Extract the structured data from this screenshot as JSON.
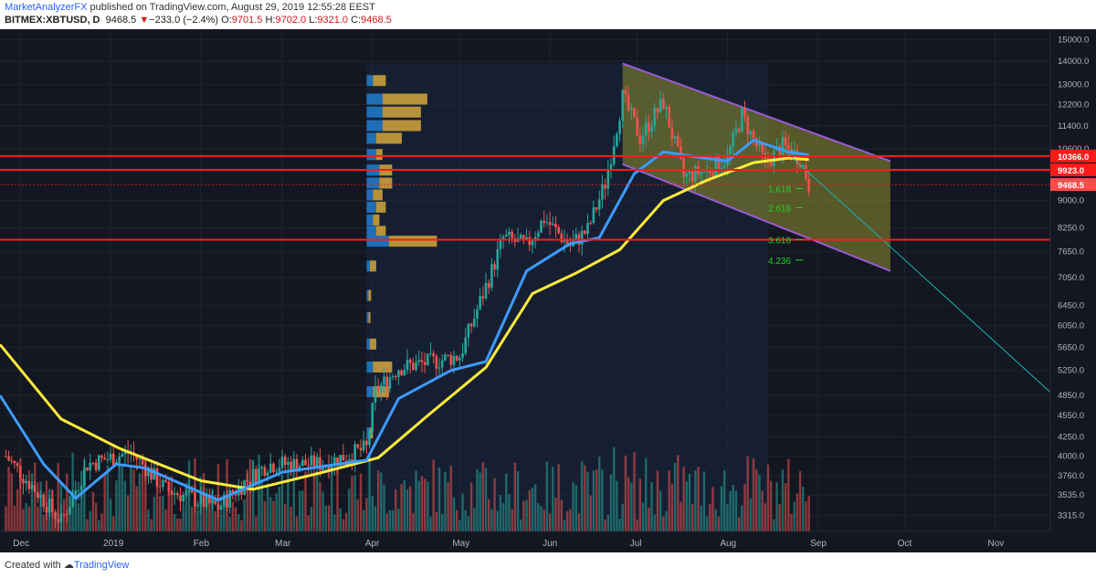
{
  "header": {
    "author": "MarketAnalyzerFX",
    "published": " published on TradingView.com, August 29, 2019 12:55:28 EEST",
    "symbol": "BITMEX:XBTUSD, D",
    "last": "9468.5",
    "change_arrow": "▼",
    "change": "−233.0 (−2.4%)",
    "o_label": "O:",
    "o_value": "9701.5",
    "h_label": "H:",
    "h_value": "9702.0",
    "l_label": "L:",
    "l_value": "9321.0",
    "c_label": "C:",
    "c_value": "9468.5"
  },
  "footer": {
    "created_with": "Created with",
    "brand": "TradingView"
  },
  "colors": {
    "background": "#131722",
    "grid": "#1f2430",
    "up": "#26a69a",
    "down": "#ef5350",
    "ema_fast": "#3d9bff",
    "ema_slow": "#ffeb3b",
    "resistance": "#ff1a1a",
    "channel_border": "#9c5bd6",
    "channel_fill": "#8f8f2f",
    "fib": "#22d32a",
    "vp_up": "#1e6fb8",
    "vp_down": "#b8923a",
    "trend_line": "#19b3b3"
  },
  "chart_data": {
    "type": "candlestick",
    "title": "",
    "xlabel": "",
    "ylabel": "",
    "scale": "log",
    "ylim": [
      3150,
      15500
    ],
    "date_range": [
      "2018-11-24",
      "2019-11-20"
    ],
    "price_ticks": [
      15000,
      14000,
      13000,
      12200,
      11400,
      10600,
      9900,
      9000,
      8250,
      7650,
      7050,
      6450,
      6050,
      5650,
      5250,
      4850,
      4550,
      4250,
      4000,
      3760,
      3535,
      3315
    ],
    "month_labels": [
      {
        "label": "Dec",
        "date": "2018-12-01"
      },
      {
        "label": "2019",
        "date": "2019-01-01"
      },
      {
        "label": "Feb",
        "date": "2019-02-01"
      },
      {
        "label": "Mar",
        "date": "2019-03-01"
      },
      {
        "label": "Apr",
        "date": "2019-04-01"
      },
      {
        "label": "May",
        "date": "2019-05-01"
      },
      {
        "label": "Jun",
        "date": "2019-06-01"
      },
      {
        "label": "Jul",
        "date": "2019-07-01"
      },
      {
        "label": "Aug",
        "date": "2019-08-01"
      },
      {
        "label": "Sep",
        "date": "2019-09-01"
      },
      {
        "label": "Oct",
        "date": "2019-10-01"
      },
      {
        "label": "Nov",
        "date": "2019-11-01"
      }
    ],
    "price_path": [
      [
        "2018-11-26",
        4000
      ],
      [
        "2018-12-06",
        3600
      ],
      [
        "2018-12-15",
        3250
      ],
      [
        "2018-12-24",
        3900
      ],
      [
        "2019-01-08",
        4050
      ],
      [
        "2019-01-20",
        3600
      ],
      [
        "2019-02-07",
        3400
      ],
      [
        "2019-02-15",
        3650
      ],
      [
        "2019-02-24",
        3900
      ],
      [
        "2019-03-15",
        3900
      ],
      [
        "2019-03-30",
        4100
      ],
      [
        "2019-04-02",
        4900
      ],
      [
        "2019-04-10",
        5300
      ],
      [
        "2019-04-22",
        5400
      ],
      [
        "2019-05-01",
        5500
      ],
      [
        "2019-05-12",
        7200
      ],
      [
        "2019-05-16",
        8000
      ],
      [
        "2019-05-24",
        7800
      ],
      [
        "2019-05-30",
        8500
      ],
      [
        "2019-06-08",
        7800
      ],
      [
        "2019-06-14",
        8200
      ],
      [
        "2019-06-20",
        9500
      ],
      [
        "2019-06-26",
        12500
      ],
      [
        "2019-07-02",
        11000
      ],
      [
        "2019-07-10",
        12300
      ],
      [
        "2019-07-17",
        9700
      ],
      [
        "2019-07-25",
        9900
      ],
      [
        "2019-08-01",
        10300
      ],
      [
        "2019-08-06",
        11800
      ],
      [
        "2019-08-14",
        10100
      ],
      [
        "2019-08-20",
        10700
      ],
      [
        "2019-08-26",
        10300
      ],
      [
        "2019-08-29",
        9468.5
      ]
    ],
    "ema_fast": [
      [
        "2018-11-24",
        4850
      ],
      [
        "2018-12-09",
        3900
      ],
      [
        "2018-12-20",
        3500
      ],
      [
        "2019-01-03",
        3900
      ],
      [
        "2019-01-13",
        3850
      ],
      [
        "2019-02-07",
        3480
      ],
      [
        "2019-03-01",
        3800
      ],
      [
        "2019-03-30",
        3950
      ],
      [
        "2019-04-10",
        4800
      ],
      [
        "2019-04-28",
        5250
      ],
      [
        "2019-05-10",
        5400
      ],
      [
        "2019-05-24",
        7200
      ],
      [
        "2019-06-08",
        7850
      ],
      [
        "2019-06-18",
        8000
      ],
      [
        "2019-06-30",
        9800
      ],
      [
        "2019-07-10",
        10500
      ],
      [
        "2019-07-24",
        10300
      ],
      [
        "2019-08-01",
        10200
      ],
      [
        "2019-08-10",
        10900
      ],
      [
        "2019-08-22",
        10500
      ],
      [
        "2019-08-29",
        10400
      ]
    ],
    "ema_slow": [
      [
        "2018-11-24",
        5700
      ],
      [
        "2018-12-15",
        4500
      ],
      [
        "2019-01-04",
        4100
      ],
      [
        "2019-02-01",
        3700
      ],
      [
        "2019-02-19",
        3600
      ],
      [
        "2019-03-15",
        3800
      ],
      [
        "2019-04-03",
        3980
      ],
      [
        "2019-04-20",
        4550
      ],
      [
        "2019-05-10",
        5300
      ],
      [
        "2019-05-26",
        6700
      ],
      [
        "2019-06-10",
        7150
      ],
      [
        "2019-06-25",
        7700
      ],
      [
        "2019-07-10",
        9000
      ],
      [
        "2019-07-25",
        9600
      ],
      [
        "2019-08-10",
        10150
      ],
      [
        "2019-08-22",
        10300
      ],
      [
        "2019-08-29",
        10250
      ]
    ],
    "horizontal_levels": [
      {
        "price": 10366.0,
        "label": "10366.0",
        "label_color": "#ff1a1a"
      },
      {
        "price": 9923.0,
        "label": "9923.0",
        "label_color": "#ff1a1a"
      },
      {
        "price": 7950,
        "label": "",
        "label_color": "#ff1a1a"
      }
    ],
    "last_price": {
      "price": 9468.5,
      "label": "9468.5"
    },
    "channel": {
      "upper": [
        [
          "2019-06-26",
          13900
        ],
        [
          "2019-09-26",
          10200
        ]
      ],
      "lower": [
        [
          "2019-06-26",
          10100
        ],
        [
          "2019-09-26",
          7200
        ]
      ]
    },
    "trend_line": [
      [
        "2019-08-20",
        10600
      ],
      [
        "2019-11-20",
        4900
      ]
    ],
    "fibonacci": [
      {
        "label": "1.618",
        "price": 9350
      },
      {
        "label": "2.618",
        "price": 8800
      },
      {
        "label": "3.618",
        "price": 7950
      },
      {
        "label": "4.236",
        "price": 7450
      }
    ],
    "volume_profile": {
      "start_date": "2019-03-30",
      "rows": [
        {
          "price": 13150,
          "up": 2,
          "down": 4
        },
        {
          "price": 12400,
          "up": 5,
          "down": 14
        },
        {
          "price": 11900,
          "up": 5,
          "down": 12
        },
        {
          "price": 11400,
          "up": 5,
          "down": 12
        },
        {
          "price": 10950,
          "up": 3,
          "down": 8
        },
        {
          "price": 10400,
          "up": 3,
          "down": 2
        },
        {
          "price": 9900,
          "up": 4,
          "down": 4
        },
        {
          "price": 9500,
          "up": 4,
          "down": 4
        },
        {
          "price": 9150,
          "up": 2,
          "down": 3
        },
        {
          "price": 8800,
          "up": 3,
          "down": 3
        },
        {
          "price": 8450,
          "up": 2,
          "down": 2
        },
        {
          "price": 8150,
          "up": 3,
          "down": 3
        },
        {
          "price": 7900,
          "up": 7,
          "down": 15
        },
        {
          "price": 7300,
          "up": 1,
          "down": 2
        },
        {
          "price": 6650,
          "up": 0.6,
          "down": 0.8
        },
        {
          "price": 6200,
          "up": 0.6,
          "down": 0.6
        },
        {
          "price": 5700,
          "up": 1,
          "down": 2
        },
        {
          "price": 5300,
          "up": 2,
          "down": 6
        },
        {
          "price": 4900,
          "up": 2,
          "down": 5
        },
        {
          "price": 4300,
          "up": 1,
          "down": 1
        }
      ]
    }
  }
}
